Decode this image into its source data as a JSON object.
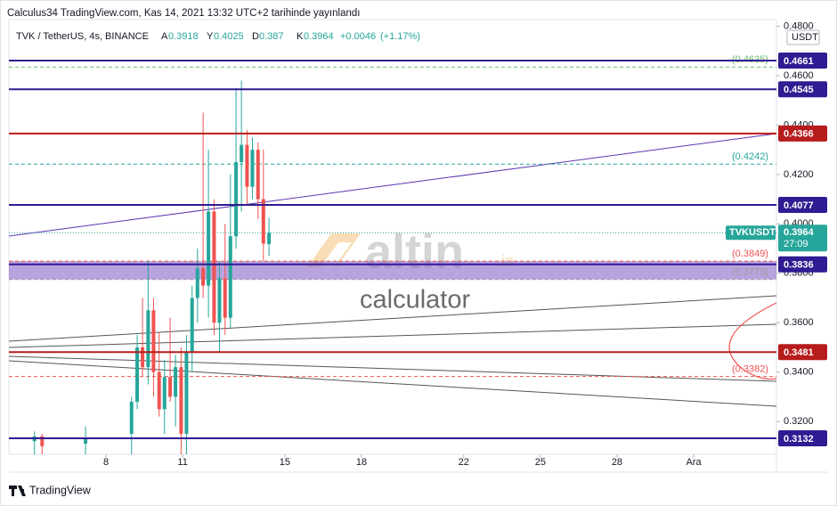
{
  "header": {
    "published": "Calculus34 TradingView.com, Kas 14, 2021 13:32 UTC+2 tarihinde yayınlandı"
  },
  "footer": {
    "brand": "TradingView"
  },
  "watermark": {
    "brand": "altin",
    "tld": ".in",
    "tagline": "calculator"
  },
  "chart_data": {
    "type": "candlestick",
    "symbol": "TVK / TetherUS, 4s, BINANCE",
    "currency": "USDT",
    "ohlc_legend": [
      {
        "key": "A",
        "value": 0.3918
      },
      {
        "key": "Y",
        "value": 0.4025
      },
      {
        "key": "D",
        "value": 0.387
      },
      {
        "key": "K",
        "value": 0.3964
      }
    ],
    "change": {
      "value": 0.0046,
      "label": "+0.0046"
    },
    "change_pct": {
      "value": 1.17,
      "label": "(+1.17%)"
    },
    "x": [
      5.2,
      5.5,
      7.2,
      9.0,
      9.22,
      9.43,
      9.65,
      9.86,
      10.08,
      10.29,
      10.51,
      10.72,
      10.94,
      11.15,
      11.37,
      11.58,
      11.8,
      12.01,
      12.23,
      12.44,
      12.66,
      12.87,
      13.09,
      13.3,
      13.52,
      13.73,
      13.95,
      14.16,
      14.38
    ],
    "open": [
      0.312,
      0.314,
      0.311,
      0.315,
      0.328,
      0.35,
      0.342,
      0.365,
      0.34,
      0.325,
      0.338,
      0.33,
      0.342,
      0.315,
      0.348,
      0.37,
      0.382,
      0.375,
      0.405,
      0.36,
      0.378,
      0.362,
      0.395,
      0.425,
      0.432,
      0.415,
      0.43,
      0.41,
      0.3918
    ],
    "high": [
      0.316,
      0.315,
      0.318,
      0.33,
      0.355,
      0.37,
      0.385,
      0.37,
      0.356,
      0.345,
      0.362,
      0.347,
      0.35,
      0.355,
      0.375,
      0.39,
      0.445,
      0.43,
      0.41,
      0.385,
      0.4,
      0.42,
      0.455,
      0.458,
      0.438,
      0.435,
      0.433,
      0.43,
      0.4025
    ],
    "low": [
      0.3067,
      0.3067,
      0.3067,
      0.3067,
      0.325,
      0.338,
      0.335,
      0.33,
      0.322,
      0.315,
      0.328,
      0.318,
      0.3067,
      0.3067,
      0.34,
      0.36,
      0.37,
      0.362,
      0.355,
      0.348,
      0.355,
      0.358,
      0.39,
      0.405,
      0.408,
      0.41,
      0.402,
      0.385,
      0.387
    ],
    "close": [
      0.314,
      0.31,
      0.313,
      0.328,
      0.35,
      0.342,
      0.365,
      0.34,
      0.325,
      0.338,
      0.33,
      0.342,
      0.315,
      0.348,
      0.37,
      0.382,
      0.375,
      0.405,
      0.36,
      0.378,
      0.362,
      0.395,
      0.425,
      0.432,
      0.415,
      0.43,
      0.41,
      0.392,
      0.3964
    ],
    "up_color": "#26a69a",
    "down_color": "#ef5350",
    "xlim": [
      4.2,
      34.24
    ],
    "xticks": [
      8,
      11,
      15,
      18,
      22,
      25,
      28,
      {
        "value": 31,
        "label": "Ara"
      }
    ],
    "ylim": [
      0.3067,
      0.4827
    ],
    "yticks": [
      {
        "value": 0.32,
        "label": "0.3200"
      },
      {
        "value": 0.34,
        "label": "0.3400"
      },
      {
        "value": 0.36,
        "label": "0.3600"
      },
      {
        "value": 0.38,
        "label": "0.3800"
      },
      {
        "value": 0.4,
        "label": "0.4000"
      },
      {
        "value": 0.42,
        "label": "0.4200"
      },
      {
        "value": 0.44,
        "label": "0.4400"
      },
      {
        "value": 0.46,
        "label": "0.4600"
      },
      {
        "value": 0.48,
        "label": "0.4800"
      }
    ],
    "grid": false,
    "levels": [
      {
        "value": 0.4661,
        "label": "0.4661",
        "color": "#311b92"
      },
      {
        "value": 0.4545,
        "label": "0.4545",
        "color": "#311b92"
      },
      {
        "value": 0.4366,
        "label": "0.4366",
        "color": "#b71c1c"
      },
      {
        "value": 0.4077,
        "label": "0.4077",
        "color": "#311b92"
      },
      {
        "value": 0.3836,
        "label": "0.3836",
        "color": "#311b92"
      },
      {
        "value": 0.3481,
        "label": "0.3481",
        "color": "#b71c1c"
      },
      {
        "value": 0.3132,
        "label": "0.3132",
        "color": "#311b92"
      }
    ],
    "dashed_levels": [
      {
        "value": 0.4635,
        "label": "(0.4635)",
        "color": "#66bb6a"
      },
      {
        "value": 0.4242,
        "label": "(0.4242)",
        "color": "#26a69a"
      },
      {
        "value": 0.3849,
        "label": "(0.3849)",
        "color": "#ef5350"
      },
      {
        "value": 0.3775,
        "label": "(0.3775)",
        "color": "#9e9e9e"
      },
      {
        "value": 0.3382,
        "label": "(0.3382)",
        "color": "#ef5350"
      }
    ],
    "zone_color": "#7e57c2",
    "last": {
      "name": "TVKUSDT",
      "value": 0.3964,
      "label": "0.3964",
      "countdown": "27:09",
      "color": "#26a69a"
    }
  }
}
